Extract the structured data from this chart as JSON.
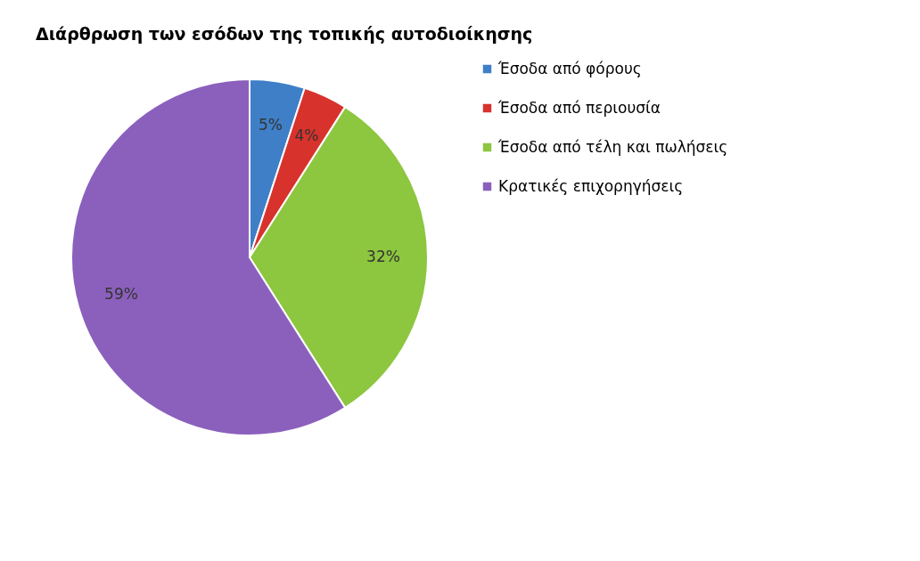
{
  "chart_data": {
    "type": "pie",
    "title": "Διάρθρωση των εσόδων της τοπικής αυτοδιοίκησης",
    "categories": [
      "Έσοδα από φόρους",
      "Έσοδα από περιουσία",
      "Έσοδα από τέλη και πωλήσεις",
      "Κρατικές επιχορηγήσεις"
    ],
    "values": [
      5,
      4,
      32,
      59
    ],
    "colors": [
      "#3f7fc8",
      "#d8322c",
      "#8dc63f",
      "#8b60bd"
    ],
    "value_labels": [
      "5%",
      "4%",
      "32%",
      "59%"
    ],
    "legend": "right"
  }
}
